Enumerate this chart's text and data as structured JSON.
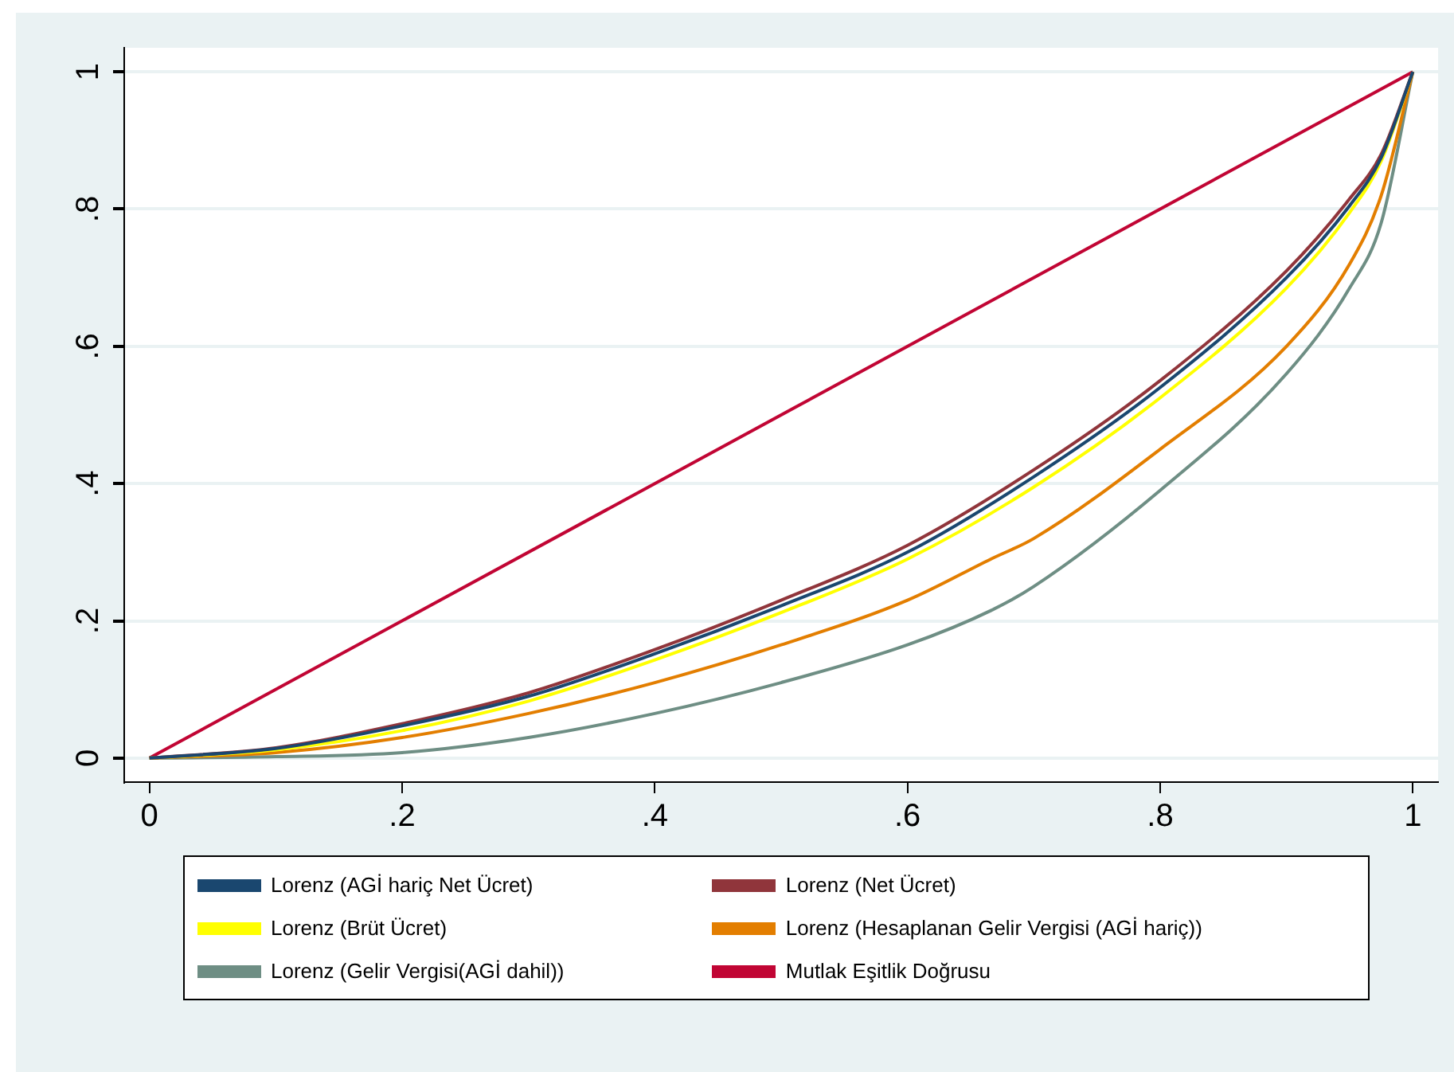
{
  "chart_data": {
    "type": "line",
    "xlim": [
      -0.02,
      1.02
    ],
    "ylim": [
      -0.035,
      1.035
    ],
    "xticks": [
      0,
      {
        "value": 0.2,
        "label": ".2"
      },
      {
        "value": 0.4,
        "label": ".4"
      },
      {
        "value": 0.6,
        "label": ".6"
      },
      {
        "value": 0.8,
        "label": ".8"
      },
      1
    ],
    "yticks": [
      0,
      {
        "value": 0.2,
        "label": ".2"
      },
      {
        "value": 0.4,
        "label": ".4"
      },
      {
        "value": 0.6,
        "label": ".6"
      },
      {
        "value": 0.8,
        "label": ".8"
      },
      1
    ],
    "grid": "y",
    "legend": "bottom",
    "marker": "none",
    "line_style": "solid",
    "series": [
      {
        "name": "Lorenz (AGİ hariç Net Ücret)",
        "color": "#1a476f",
        "x": [
          0,
          0.1,
          0.2,
          0.3,
          0.4,
          0.5,
          0.6,
          0.7,
          0.8,
          0.9,
          0.95,
          0.975,
          1
        ],
        "values": [
          0,
          0.014,
          0.047,
          0.09,
          0.152,
          0.222,
          0.3,
          0.41,
          0.54,
          0.7,
          0.805,
          0.875,
          1
        ]
      },
      {
        "name": "Lorenz (Net Ücret)",
        "color": "#90353b",
        "x": [
          0,
          0.1,
          0.2,
          0.3,
          0.4,
          0.5,
          0.6,
          0.7,
          0.8,
          0.9,
          0.95,
          0.975,
          1
        ],
        "values": [
          0,
          0.015,
          0.05,
          0.095,
          0.158,
          0.23,
          0.31,
          0.42,
          0.55,
          0.71,
          0.815,
          0.88,
          1
        ]
      },
      {
        "name": "Lorenz (Brüt Ücret)",
        "color": "#ffff00",
        "x": [
          0,
          0.1,
          0.2,
          0.3,
          0.4,
          0.5,
          0.6,
          0.7,
          0.8,
          0.9,
          0.95,
          0.975,
          1
        ],
        "values": [
          0,
          0.012,
          0.04,
          0.083,
          0.143,
          0.212,
          0.29,
          0.395,
          0.525,
          0.685,
          0.795,
          0.87,
          1
        ]
      },
      {
        "name": "Lorenz (Hesaplanan Gelir Vergisi (AGİ hariç))",
        "color": "#e37e00",
        "x": [
          0,
          0.1,
          0.2,
          0.3,
          0.4,
          0.5,
          0.6,
          0.666,
          0.7,
          0.8,
          0.9,
          0.95,
          0.975,
          1
        ],
        "values": [
          0,
          0.008,
          0.03,
          0.065,
          0.11,
          0.165,
          0.23,
          0.29,
          0.32,
          0.45,
          0.6,
          0.72,
          0.82,
          1
        ]
      },
      {
        "name": "Lorenz (Gelir Vergisi(AGİ dahil))",
        "color": "#6e8e84",
        "x": [
          0,
          0.1,
          0.2,
          0.3,
          0.4,
          0.5,
          0.6,
          0.666,
          0.7,
          0.8,
          0.9,
          0.95,
          0.975,
          1
        ],
        "values": [
          0,
          0.002,
          0.008,
          0.03,
          0.065,
          0.11,
          0.165,
          0.215,
          0.25,
          0.39,
          0.56,
          0.685,
          0.78,
          1
        ]
      },
      {
        "name": "Mutlak Eşitlik Doğrusu",
        "color": "#c10534",
        "x": [
          0,
          1
        ],
        "values": [
          0,
          1
        ]
      }
    ]
  }
}
